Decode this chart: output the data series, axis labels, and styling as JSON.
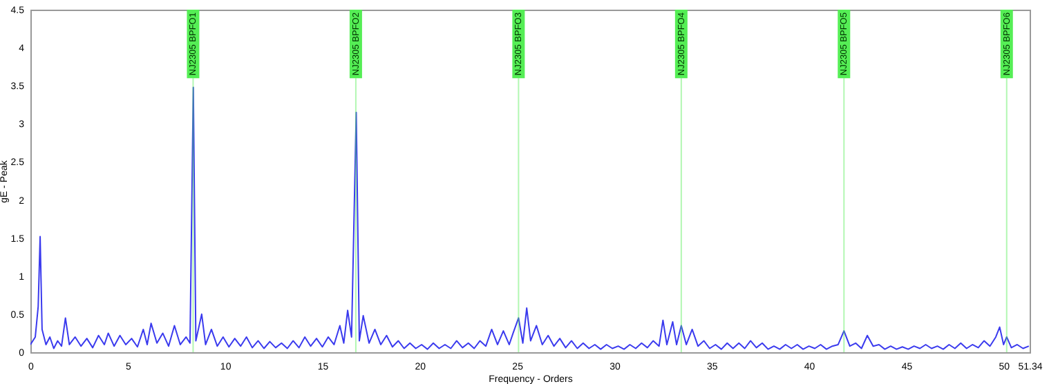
{
  "chart_data": {
    "type": "line",
    "xlabel": "Frequency - Orders",
    "ylabel": "gE - Peak",
    "xlim": [
      0,
      51.34
    ],
    "xticks": [
      0,
      5,
      10,
      15,
      20,
      25,
      30,
      35,
      40,
      45,
      50,
      51.34
    ],
    "ylim": [
      0,
      4.5
    ],
    "yticks": [
      0,
      0.5,
      1,
      1.5,
      2,
      2.5,
      3,
      3.5,
      4,
      4.5
    ],
    "series": [
      {
        "color": "#3a3aee",
        "x": [
          0,
          0.25,
          0.4,
          0.5,
          0.6,
          0.8,
          1.0,
          1.2,
          1.4,
          1.6,
          1.8,
          2.0,
          2.3,
          2.6,
          2.9,
          3.2,
          3.5,
          3.8,
          4.0,
          4.3,
          4.6,
          4.9,
          5.2,
          5.5,
          5.8,
          6.0,
          6.2,
          6.5,
          6.8,
          7.1,
          7.4,
          7.7,
          8.0,
          8.2,
          8.37,
          8.5,
          8.8,
          9.0,
          9.3,
          9.6,
          9.9,
          10.2,
          10.5,
          10.8,
          11.1,
          11.4,
          11.7,
          12.0,
          12.3,
          12.6,
          12.9,
          13.2,
          13.5,
          13.8,
          14.1,
          14.4,
          14.7,
          15.0,
          15.3,
          15.6,
          15.9,
          16.1,
          16.3,
          16.5,
          16.74,
          16.9,
          17.1,
          17.4,
          17.7,
          18.0,
          18.3,
          18.6,
          18.9,
          19.2,
          19.5,
          19.8,
          20.1,
          20.4,
          20.7,
          21.0,
          21.3,
          21.6,
          21.9,
          22.2,
          22.5,
          22.8,
          23.1,
          23.4,
          23.7,
          24.0,
          24.3,
          24.6,
          24.8,
          25.08,
          25.3,
          25.5,
          25.7,
          26.0,
          26.3,
          26.6,
          26.9,
          27.2,
          27.5,
          27.8,
          28.1,
          28.4,
          28.7,
          29.0,
          29.3,
          29.6,
          29.9,
          30.2,
          30.5,
          30.8,
          31.1,
          31.4,
          31.7,
          32.0,
          32.3,
          32.5,
          32.7,
          33.0,
          33.2,
          33.44,
          33.7,
          34.0,
          34.3,
          34.6,
          34.9,
          35.2,
          35.5,
          35.8,
          36.1,
          36.4,
          36.7,
          37.0,
          37.3,
          37.6,
          37.9,
          38.2,
          38.5,
          38.8,
          39.1,
          39.4,
          39.7,
          40.0,
          40.3,
          40.6,
          40.9,
          41.2,
          41.5,
          41.8,
          42.1,
          42.4,
          42.7,
          43.0,
          43.3,
          43.6,
          43.9,
          44.2,
          44.5,
          44.8,
          45.1,
          45.4,
          45.7,
          46.0,
          46.3,
          46.6,
          46.9,
          47.2,
          47.5,
          47.8,
          48.1,
          48.4,
          48.7,
          49.0,
          49.3,
          49.6,
          49.8,
          50.0,
          50.16,
          50.4,
          50.7,
          51.0,
          51.3
        ],
        "values": [
          0.1,
          0.2,
          0.6,
          1.52,
          0.3,
          0.1,
          0.2,
          0.05,
          0.15,
          0.08,
          0.45,
          0.1,
          0.2,
          0.08,
          0.18,
          0.06,
          0.22,
          0.1,
          0.25,
          0.08,
          0.22,
          0.1,
          0.18,
          0.07,
          0.3,
          0.1,
          0.38,
          0.12,
          0.25,
          0.08,
          0.35,
          0.1,
          0.2,
          0.12,
          3.48,
          0.15,
          0.5,
          0.1,
          0.3,
          0.08,
          0.2,
          0.07,
          0.18,
          0.08,
          0.2,
          0.06,
          0.15,
          0.05,
          0.14,
          0.06,
          0.12,
          0.05,
          0.15,
          0.06,
          0.2,
          0.08,
          0.18,
          0.07,
          0.2,
          0.1,
          0.35,
          0.12,
          0.55,
          0.2,
          3.15,
          0.15,
          0.48,
          0.12,
          0.3,
          0.1,
          0.22,
          0.07,
          0.15,
          0.05,
          0.12,
          0.05,
          0.1,
          0.04,
          0.12,
          0.05,
          0.1,
          0.05,
          0.15,
          0.06,
          0.12,
          0.05,
          0.15,
          0.08,
          0.3,
          0.1,
          0.28,
          0.1,
          0.25,
          0.45,
          0.12,
          0.58,
          0.15,
          0.35,
          0.1,
          0.22,
          0.08,
          0.18,
          0.06,
          0.15,
          0.05,
          0.12,
          0.05,
          0.1,
          0.04,
          0.1,
          0.05,
          0.08,
          0.04,
          0.1,
          0.05,
          0.12,
          0.06,
          0.15,
          0.08,
          0.42,
          0.1,
          0.4,
          0.1,
          0.35,
          0.1,
          0.3,
          0.08,
          0.15,
          0.05,
          0.1,
          0.04,
          0.12,
          0.05,
          0.12,
          0.05,
          0.15,
          0.06,
          0.12,
          0.04,
          0.08,
          0.04,
          0.1,
          0.05,
          0.1,
          0.04,
          0.08,
          0.05,
          0.1,
          0.04,
          0.08,
          0.1,
          0.28,
          0.08,
          0.12,
          0.05,
          0.22,
          0.08,
          0.1,
          0.04,
          0.08,
          0.04,
          0.07,
          0.04,
          0.08,
          0.05,
          0.1,
          0.05,
          0.08,
          0.04,
          0.1,
          0.05,
          0.12,
          0.05,
          0.1,
          0.06,
          0.15,
          0.08,
          0.2,
          0.33,
          0.1,
          0.2,
          0.06,
          0.1,
          0.05,
          0.08
        ]
      }
    ],
    "ref_lines": [
      {
        "axis": "x",
        "value": 8.36,
        "label": "NJ2305 BPFO1",
        "color": "#55ee55"
      },
      {
        "axis": "x",
        "value": 16.72,
        "label": "NJ2305 BPFO2",
        "color": "#55ee55"
      },
      {
        "axis": "x",
        "value": 25.08,
        "label": "NJ2305 BPFO3",
        "color": "#55ee55"
      },
      {
        "axis": "x",
        "value": 33.44,
        "label": "NJ2305 BPFO4",
        "color": "#55ee55"
      },
      {
        "axis": "x",
        "value": 41.8,
        "label": "NJ2305 BPFO5",
        "color": "#55ee55"
      },
      {
        "axis": "x",
        "value": 50.16,
        "label": "NJ2305 BPFO6",
        "color": "#55ee55"
      }
    ]
  }
}
